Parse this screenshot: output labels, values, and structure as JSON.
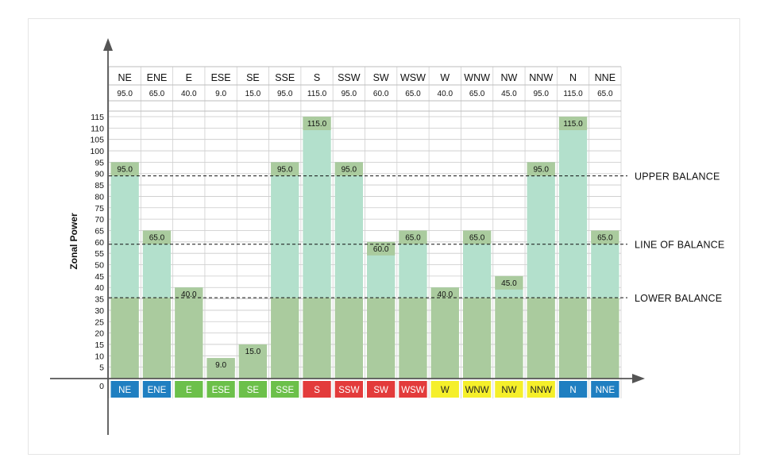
{
  "chart_data": {
    "type": "bar",
    "ylabel": "Zonal Power",
    "ylim": [
      0,
      115
    ],
    "y_ticks": [
      0,
      5,
      10,
      15,
      20,
      25,
      30,
      35,
      40,
      45,
      50,
      55,
      60,
      65,
      70,
      75,
      80,
      85,
      90,
      95,
      100,
      105,
      110,
      115
    ],
    "categories": [
      "NE",
      "ENE",
      "E",
      "ESE",
      "SE",
      "SSE",
      "S",
      "SSW",
      "SW",
      "WSW",
      "W",
      "WNW",
      "NW",
      "NNW",
      "N",
      "NNE"
    ],
    "values": [
      95.0,
      65.0,
      40.0,
      9.0,
      15.0,
      95.0,
      115.0,
      95.0,
      60.0,
      65.0,
      40.0,
      65.0,
      45.0,
      95.0,
      115.0,
      65.0
    ],
    "value_labels": [
      "95.0",
      "65.0",
      "40.0",
      "9.0",
      "15.0",
      "95.0",
      "115.0",
      "95.0",
      "60.0",
      "65.0",
      "40.0",
      "65.0",
      "45.0",
      "95.0",
      "115.0",
      "65.0"
    ],
    "category_colors": [
      "#1f7fc1",
      "#1f7fc1",
      "#6cc04a",
      "#6cc04a",
      "#6cc04a",
      "#6cc04a",
      "#e33b3b",
      "#e33b3b",
      "#e33b3b",
      "#e33b3b",
      "#f5ef2a",
      "#f5ef2a",
      "#f5ef2a",
      "#f5ef2a",
      "#1f7fc1",
      "#1f7fc1"
    ],
    "reference_lines": [
      {
        "label": "UPPER BALANCE",
        "value": 89
      },
      {
        "label": "LINE OF BALANCE",
        "value": 59
      },
      {
        "label": "LOWER BALANCE",
        "value": 35.5
      }
    ],
    "bar_colors": {
      "lower": "#aacb9e",
      "upper": "#b3e0cc"
    },
    "grid": true
  }
}
